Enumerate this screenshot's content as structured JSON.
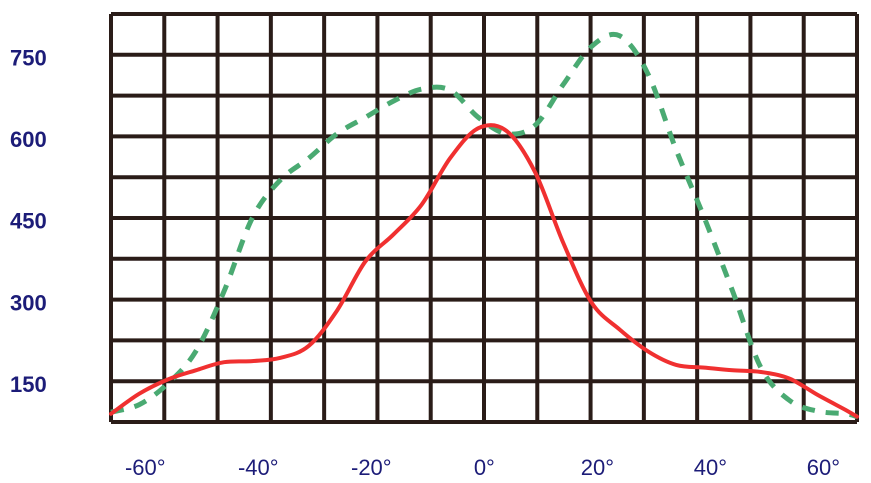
{
  "chart_data": {
    "type": "line",
    "title": "",
    "xlabel": "",
    "ylabel": "",
    "xlim": [
      -65,
      67
    ],
    "ylim": [
      80,
      830
    ],
    "x_tick_values": [
      -60,
      -40,
      -20,
      0,
      20,
      40,
      60
    ],
    "x_tick_labels": [
      "-60°",
      "-40°",
      "-20°",
      "0°",
      "20°",
      "40°",
      "60°"
    ],
    "y_tick_values": [
      150,
      300,
      450,
      600,
      750
    ],
    "y_tick_labels": [
      "150",
      "300",
      "450",
      "600",
      "750"
    ],
    "grid": true,
    "legend": "none",
    "colors": {
      "grid": "#2a1c18",
      "ytick_text": "#1c1c78",
      "xtick_text": "#1c1c78",
      "solid_series": "#f03030",
      "dashed_series": "#4aaa72"
    },
    "series": [
      {
        "style": "solid",
        "x": [
          -65,
          -60,
          -55,
          -50,
          -45,
          -40,
          -35,
          -30,
          -25,
          -20,
          -15,
          -10,
          -5,
          0,
          5,
          10,
          15,
          20,
          25,
          30,
          35,
          40,
          45,
          50,
          55,
          60,
          65,
          67
        ],
        "values": [
          95,
          132,
          158,
          175,
          190,
          192,
          198,
          220,
          285,
          375,
          425,
          480,
          565,
          620,
          615,
          540,
          410,
          300,
          250,
          210,
          185,
          180,
          175,
          172,
          160,
          130,
          102,
          90
        ]
      },
      {
        "style": "dashed",
        "x": [
          -65,
          -60,
          -55,
          -50,
          -45,
          -40,
          -35,
          -30,
          -25,
          -20,
          -15,
          -10,
          -5,
          0,
          5,
          10,
          15,
          20,
          25,
          30,
          35,
          40,
          45,
          50,
          55,
          60,
          65,
          67
        ],
        "values": [
          98,
          112,
          150,
          210,
          320,
          455,
          525,
          565,
          610,
          640,
          670,
          692,
          690,
          640,
          610,
          625,
          700,
          770,
          790,
          720,
          580,
          455,
          320,
          180,
          120,
          100,
          95,
          90
        ]
      }
    ]
  }
}
